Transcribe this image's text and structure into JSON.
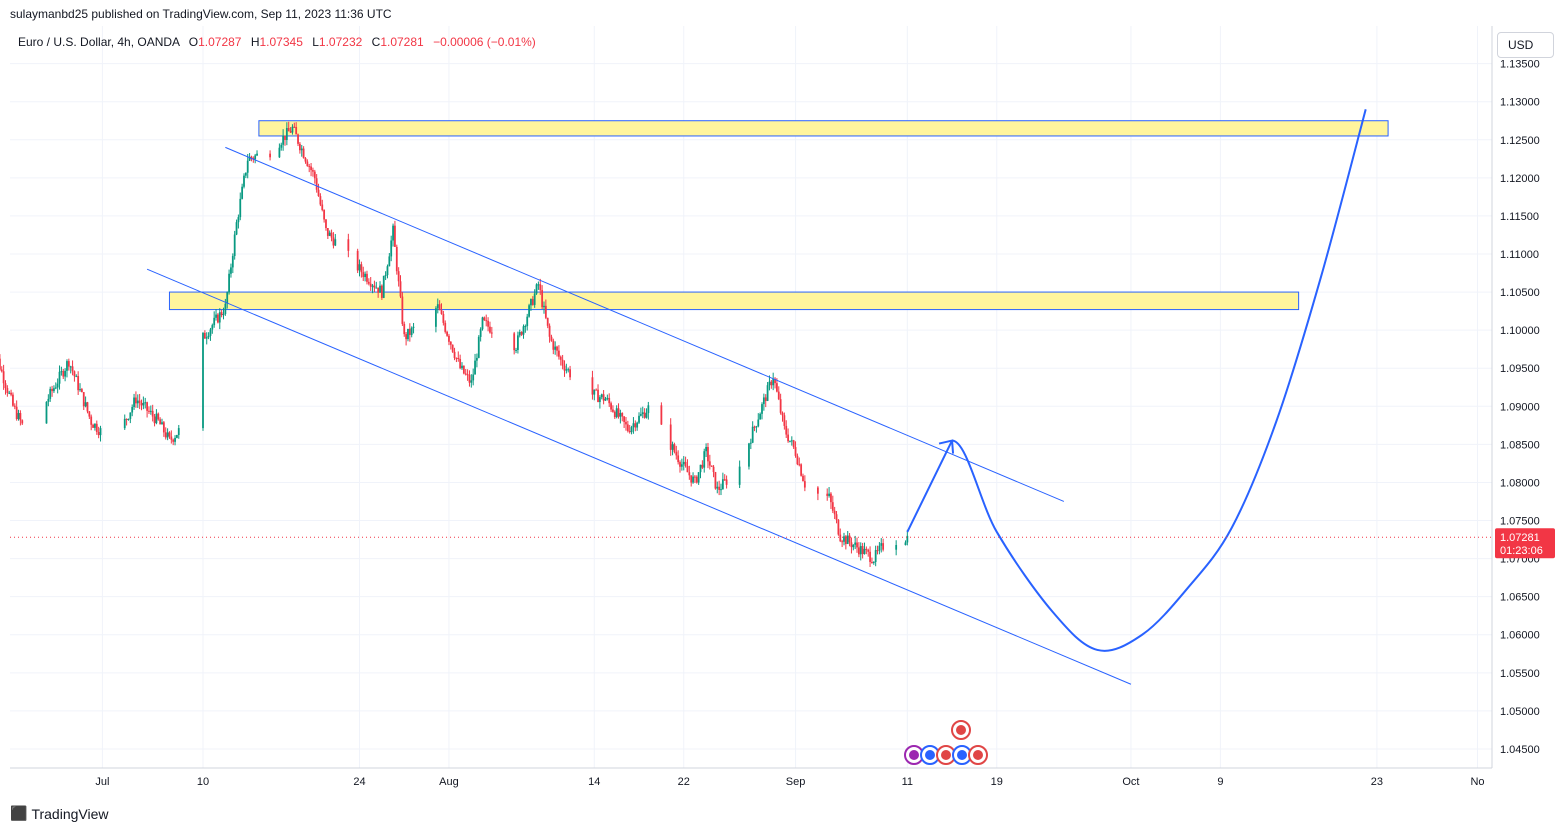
{
  "header": {
    "publisher": "sulaymanbd25 published on TradingView.com, Sep 11, 2023 11:36 UTC",
    "symbol": "Euro / U.S. Dollar, 4h, OANDA",
    "ohlc": {
      "o_label": "O",
      "o": "1.07287",
      "h_label": "H",
      "h": "1.07345",
      "l_label": "L",
      "l": "1.07232",
      "c_label": "C",
      "c": "1.07281",
      "change": "−0.00006 (−0.01%)"
    },
    "currency_button": "USD"
  },
  "branding": {
    "name": "TradingView",
    "logo": "tradingview-logo-icon"
  },
  "colors": {
    "up": "#089981",
    "down": "#f23645",
    "drawing": "#2962ff",
    "zone_fill": "#fff59d",
    "zone_border": "#2962ff",
    "price_label_bg": "#f23645"
  },
  "chart_data": {
    "type": "candlestick",
    "symbol": "EURUSD",
    "interval": "4h",
    "ylim": [
      1.0425,
      1.136
    ],
    "y_ticks": [
      "1.04500",
      "1.05000",
      "1.05500",
      "1.06000",
      "1.06500",
      "1.07000",
      "1.07500",
      "1.08000",
      "1.08500",
      "1.09000",
      "1.09500",
      "1.10000",
      "1.10500",
      "1.11000",
      "1.11500",
      "1.12000",
      "1.12500",
      "1.13000",
      "1.13500"
    ],
    "x_ticks": [
      {
        "label": "Jul",
        "date": "2023-07-01"
      },
      {
        "label": "10",
        "date": "2023-07-10"
      },
      {
        "label": "24",
        "date": "2023-07-24"
      },
      {
        "label": "Aug",
        "date": "2023-08-01"
      },
      {
        "label": "14",
        "date": "2023-08-14"
      },
      {
        "label": "22",
        "date": "2023-08-22"
      },
      {
        "label": "Sep",
        "date": "2023-09-01"
      },
      {
        "label": "11",
        "date": "2023-09-11"
      },
      {
        "label": "19",
        "date": "2023-09-19"
      },
      {
        "label": "Oct",
        "date": "2023-10-01"
      },
      {
        "label": "9",
        "date": "2023-10-09"
      },
      {
        "label": "23",
        "date": "2023-10-23"
      },
      {
        "label": "No",
        "date": "2023-11-01"
      }
    ],
    "last_price": "1.07281",
    "countdown": "01:23:06",
    "price_path": [
      [
        "2023-06-21",
        1.099
      ],
      [
        "2023-06-23",
        1.09
      ],
      [
        "2023-06-24",
        1.087
      ],
      [
        "2023-06-25",
        1.088
      ],
      [
        "2023-06-28",
        1.096
      ],
      [
        "2023-06-30",
        1.088
      ],
      [
        "2023-07-02",
        1.085
      ],
      [
        "2023-07-04",
        1.091
      ],
      [
        "2023-07-06",
        1.088
      ],
      [
        "2023-07-07",
        1.0855
      ],
      [
        "2023-07-08",
        1.087
      ],
      [
        "2023-07-10",
        1.099
      ],
      [
        "2023-07-12",
        1.103
      ],
      [
        "2023-07-13",
        1.114
      ],
      [
        "2023-07-14",
        1.1225
      ],
      [
        "2023-07-16",
        1.1235
      ],
      [
        "2023-07-18",
        1.1265
      ],
      [
        "2023-07-20",
        1.12
      ],
      [
        "2023-07-21",
        1.113
      ],
      [
        "2023-07-24",
        1.108
      ],
      [
        "2023-07-26",
        1.105
      ],
      [
        "2023-07-27",
        1.113
      ],
      [
        "2023-07-28",
        1.099
      ],
      [
        "2023-07-31",
        1.103
      ],
      [
        "2023-08-02",
        1.095
      ],
      [
        "2023-08-03",
        1.093
      ],
      [
        "2023-08-04",
        1.101
      ],
      [
        "2023-08-07",
        1.098
      ],
      [
        "2023-08-09",
        1.106
      ],
      [
        "2023-08-10",
        1.099
      ],
      [
        "2023-08-11",
        1.096
      ],
      [
        "2023-08-13",
        1.092
      ],
      [
        "2023-08-15",
        1.091
      ],
      [
        "2023-08-17",
        1.087
      ],
      [
        "2023-08-19",
        1.09
      ],
      [
        "2023-08-20",
        1.087
      ],
      [
        "2023-08-22",
        1.082
      ],
      [
        "2023-08-23",
        1.08
      ],
      [
        "2023-08-24",
        1.084
      ],
      [
        "2023-08-25",
        1.079
      ],
      [
        "2023-08-27",
        1.082
      ],
      [
        "2023-08-29",
        1.09
      ],
      [
        "2023-08-30",
        1.094
      ],
      [
        "2023-08-31",
        1.087
      ],
      [
        "2023-09-01",
        1.084
      ],
      [
        "2023-09-02",
        1.079
      ],
      [
        "2023-09-04",
        1.078
      ],
      [
        "2023-09-05",
        1.073
      ],
      [
        "2023-09-07",
        1.071
      ],
      [
        "2023-09-08",
        1.07
      ],
      [
        "2023-09-09",
        1.072
      ],
      [
        "2023-09-11",
        1.07281
      ]
    ],
    "zones": [
      {
        "from": "2023-07-15",
        "to": "2023-10-24",
        "low": 1.1255,
        "high": 1.1275
      },
      {
        "from": "2023-07-07",
        "to": "2023-10-16",
        "low": 1.1027,
        "high": 1.105
      }
    ],
    "channel_lines": [
      {
        "from": [
          "2023-07-12",
          1.124
        ],
        "to": [
          "2023-09-25",
          1.0775
        ]
      },
      {
        "from": [
          "2023-07-05",
          1.108
        ],
        "to": [
          "2023-10-01",
          1.0535
        ]
      }
    ],
    "projection": [
      [
        "2023-09-11",
        1.0735
      ],
      [
        "2023-09-15",
        1.0855
      ],
      [
        "2023-09-19",
        1.0735
      ],
      [
        "2023-09-24",
        1.063
      ],
      [
        "2023-09-28",
        1.058
      ],
      [
        "2023-10-02",
        1.06
      ],
      [
        "2023-10-06",
        1.066
      ],
      [
        "2023-10-10",
        1.074
      ],
      [
        "2023-10-14",
        1.088
      ],
      [
        "2023-10-18",
        1.107
      ],
      [
        "2023-10-22",
        1.129
      ]
    ],
    "events": [
      {
        "row": 1,
        "icons": [
          "us-flag-icon"
        ]
      },
      {
        "row": 2,
        "icons": [
          "lightning-icon",
          "eu-flag-icon",
          "us-flag-icon",
          "eu-flag-icon",
          "us-flag-icon"
        ]
      }
    ]
  }
}
